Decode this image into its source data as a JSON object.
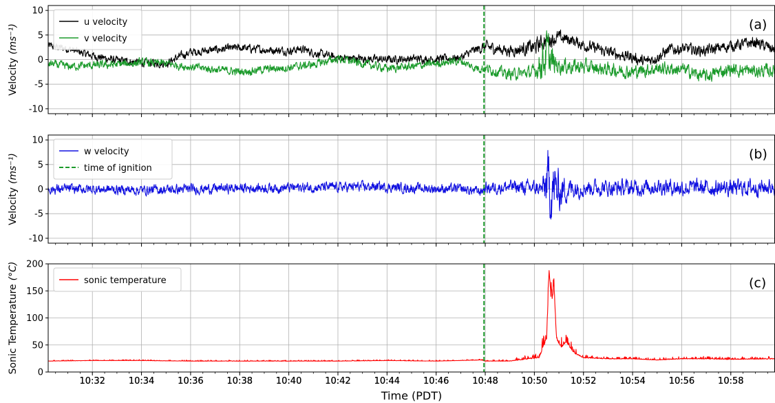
{
  "chart_data": [
    {
      "type": "line",
      "panel_label": "(a)",
      "ylabel": "Velocity",
      "yunit": "(ms⁻¹)",
      "ylim": [
        -11,
        11
      ],
      "yticks": [
        "-10",
        "-5",
        "0",
        "5",
        "10"
      ],
      "ytick_values": [
        -10,
        -5,
        0,
        5,
        10
      ],
      "grid": true,
      "legend_position": "top-left",
      "xlim_min": [
        30.2,
        59.8
      ],
      "series": [
        {
          "name": "u velocity",
          "color": "#000000",
          "points_min": [
            [
              30.2,
              2.8
            ],
            [
              31,
              2.2
            ],
            [
              32,
              0.8
            ],
            [
              33,
              -0.2
            ],
            [
              34,
              -0.6
            ],
            [
              35,
              -0.8
            ],
            [
              35.5,
              0.5
            ],
            [
              36,
              1.5
            ],
            [
              37,
              2.0
            ],
            [
              38,
              2.4
            ],
            [
              39,
              2.0
            ],
            [
              40,
              1.8
            ],
            [
              40.5,
              2.2
            ],
            [
              41,
              1.4
            ],
            [
              42,
              0.4
            ],
            [
              43,
              0.2
            ],
            [
              44,
              0.0
            ],
            [
              45,
              0.2
            ],
            [
              46,
              0.1
            ],
            [
              47,
              0.4
            ],
            [
              47.5,
              1.8
            ],
            [
              48,
              2.6
            ],
            [
              49,
              1.8
            ],
            [
              49.5,
              2.2
            ],
            [
              50,
              2.5
            ],
            [
              50.5,
              4.0
            ],
            [
              51,
              4.5
            ],
            [
              51.5,
              4.0
            ],
            [
              52,
              3.0
            ],
            [
              53,
              1.5
            ],
            [
              54,
              0.5
            ],
            [
              54.5,
              -0.5
            ],
            [
              55,
              0.5
            ],
            [
              55.5,
              2.0
            ],
            [
              56,
              2.2
            ],
            [
              57,
              1.8
            ],
            [
              58,
              2.8
            ],
            [
              59,
              3.5
            ],
            [
              59.8,
              2.0
            ]
          ],
          "amplitude": [
            1.0,
            1.0,
            1.0,
            1.0,
            1.0,
            1.0,
            1.0,
            1.0,
            1.0,
            1.0,
            1.0,
            1.0,
            1.0,
            1.0,
            1.0,
            1.0,
            1.0,
            1.0,
            1.0,
            1.0,
            1.0,
            1.4,
            1.4,
            1.6,
            2.0,
            2.0,
            1.6,
            1.4,
            1.4,
            1.4,
            1.4,
            1.4,
            1.4,
            1.4,
            1.4,
            1.4,
            1.4,
            1.4,
            1.4
          ]
        },
        {
          "name": "v velocity",
          "color": "#1a9a2a",
          "points_min": [
            [
              30.2,
              -0.8
            ],
            [
              31,
              -1.4
            ],
            [
              32,
              -1.2
            ],
            [
              33,
              -1.0
            ],
            [
              34,
              -0.6
            ],
            [
              35,
              -0.8
            ],
            [
              35.5,
              -1.2
            ],
            [
              36,
              -1.5
            ],
            [
              37,
              -2.0
            ],
            [
              38,
              -2.5
            ],
            [
              39,
              -2.0
            ],
            [
              40,
              -1.6
            ],
            [
              41,
              -1.0
            ],
            [
              42,
              0.2
            ],
            [
              43,
              -0.8
            ],
            [
              44,
              -1.8
            ],
            [
              45,
              -1.4
            ],
            [
              46,
              -0.8
            ],
            [
              47,
              -0.2
            ],
            [
              47.5,
              -1.6
            ],
            [
              48,
              -1.8
            ],
            [
              49,
              -3.0
            ],
            [
              49.5,
              -2.8
            ],
            [
              50,
              -2.5
            ],
            [
              50.5,
              1.0
            ],
            [
              50.8,
              -1.0
            ],
            [
              51,
              -1.2
            ],
            [
              52,
              -1.5
            ],
            [
              53,
              -2.0
            ],
            [
              54,
              -2.5
            ],
            [
              55,
              -1.8
            ],
            [
              56,
              -2.0
            ],
            [
              57,
              -3.5
            ],
            [
              57.5,
              -2.5
            ],
            [
              58,
              -2.0
            ],
            [
              59,
              -2.4
            ],
            [
              59.8,
              -2.2
            ]
          ],
          "amplitude": [
            1.0,
            1.0,
            1.0,
            1.0,
            1.0,
            1.0,
            1.0,
            1.0,
            1.0,
            1.0,
            1.0,
            1.0,
            1.0,
            1.0,
            1.0,
            1.0,
            1.0,
            1.0,
            1.0,
            1.0,
            1.2,
            1.4,
            1.4,
            1.6,
            6.0,
            3.0,
            2.0,
            1.8,
            1.6,
            1.6,
            1.6,
            1.6,
            1.6,
            1.6,
            1.6,
            1.6,
            1.6
          ]
        }
      ]
    },
    {
      "type": "line",
      "panel_label": "(b)",
      "ylabel": "Velocity",
      "yunit": "(ms⁻¹)",
      "ylim": [
        -11,
        11
      ],
      "yticks": [
        "-10",
        "-5",
        "0",
        "5",
        "10"
      ],
      "ytick_values": [
        -10,
        -5,
        0,
        5,
        10
      ],
      "grid": true,
      "legend_position": "top-left",
      "series": [
        {
          "name": "w velocity",
          "color": "#1010e0",
          "points_min": [
            [
              30.2,
              0.0
            ],
            [
              32,
              0.0
            ],
            [
              34,
              -0.2
            ],
            [
              36,
              0.0
            ],
            [
              38,
              0.2
            ],
            [
              40,
              0.3
            ],
            [
              42,
              0.4
            ],
            [
              43.5,
              0.5
            ],
            [
              45,
              0.2
            ],
            [
              47,
              0.0
            ],
            [
              47.8,
              -0.5
            ],
            [
              48,
              0.2
            ],
            [
              49,
              0.5
            ],
            [
              50,
              0.2
            ],
            [
              50.3,
              0.0
            ],
            [
              50.6,
              1.0
            ],
            [
              50.9,
              -0.5
            ],
            [
              51.3,
              0.0
            ],
            [
              52,
              0.4
            ],
            [
              54,
              0.2
            ],
            [
              55,
              0.6
            ],
            [
              56,
              0.3
            ],
            [
              58,
              0.2
            ],
            [
              59.8,
              0.5
            ]
          ],
          "amplitude": [
            1.2,
            1.2,
            1.2,
            1.2,
            1.2,
            1.2,
            1.2,
            1.2,
            1.2,
            1.2,
            1.2,
            1.4,
            1.6,
            1.8,
            1.8,
            9.0,
            6.0,
            3.0,
            2.0,
            2.0,
            2.0,
            2.0,
            2.0,
            2.0
          ]
        }
      ]
    },
    {
      "type": "line",
      "panel_label": "(c)",
      "ylabel": "Sonic Temperature",
      "yunit": "(°C)",
      "ylim": [
        0,
        200
      ],
      "yticks": [
        "0",
        "50",
        "100",
        "150",
        "200"
      ],
      "ytick_values": [
        0,
        50,
        100,
        150,
        200
      ],
      "grid": true,
      "legend_position": "top-left",
      "series": [
        {
          "name": "sonic temperature",
          "color": "#ff0000",
          "points_min": [
            [
              30.2,
              20
            ],
            [
              32,
              21
            ],
            [
              34,
              21
            ],
            [
              36,
              20
            ],
            [
              38,
              20
            ],
            [
              40,
              20
            ],
            [
              42,
              20
            ],
            [
              44,
              21
            ],
            [
              46,
              20
            ],
            [
              47.8,
              22
            ],
            [
              48,
              20
            ],
            [
              49,
              20
            ],
            [
              49.8,
              24
            ],
            [
              50.2,
              26
            ],
            [
              50.5,
              60
            ],
            [
              50.6,
              185
            ],
            [
              50.7,
              120
            ],
            [
              50.8,
              160
            ],
            [
              50.9,
              60
            ],
            [
              51.1,
              45
            ],
            [
              51.3,
              55
            ],
            [
              51.6,
              35
            ],
            [
              52,
              26
            ],
            [
              53,
              24
            ],
            [
              54,
              24
            ],
            [
              55,
              22
            ],
            [
              56,
              24
            ],
            [
              57,
              24
            ],
            [
              58,
              23
            ],
            [
              59.8,
              24
            ]
          ],
          "amplitude": [
            2,
            2,
            2,
            2,
            2,
            2,
            2,
            2,
            2,
            2,
            2,
            4,
            8,
            8,
            40,
            30,
            40,
            30,
            30,
            20,
            20,
            12,
            6,
            4,
            4,
            4,
            5,
            5,
            5,
            5
          ]
        }
      ]
    }
  ],
  "ignition": {
    "label": "time of ignition",
    "time_min": 47.95,
    "color": "#1a9a2a"
  },
  "xaxis": {
    "label": "Time (PDT)",
    "xlim_min": [
      30.2,
      59.8
    ],
    "ticks": [
      {
        "label": "10:32",
        "min": 32
      },
      {
        "label": "10:34",
        "min": 34
      },
      {
        "label": "10:36",
        "min": 36
      },
      {
        "label": "10:38",
        "min": 38
      },
      {
        "label": "10:40",
        "min": 40
      },
      {
        "label": "10:42",
        "min": 42
      },
      {
        "label": "10:44",
        "min": 44
      },
      {
        "label": "10:46",
        "min": 46
      },
      {
        "label": "10:48",
        "min": 48
      },
      {
        "label": "10:50",
        "min": 50
      },
      {
        "label": "10:52",
        "min": 52
      },
      {
        "label": "10:54",
        "min": 54
      },
      {
        "label": "10:56",
        "min": 56
      },
      {
        "label": "10:58",
        "min": 58
      }
    ]
  }
}
